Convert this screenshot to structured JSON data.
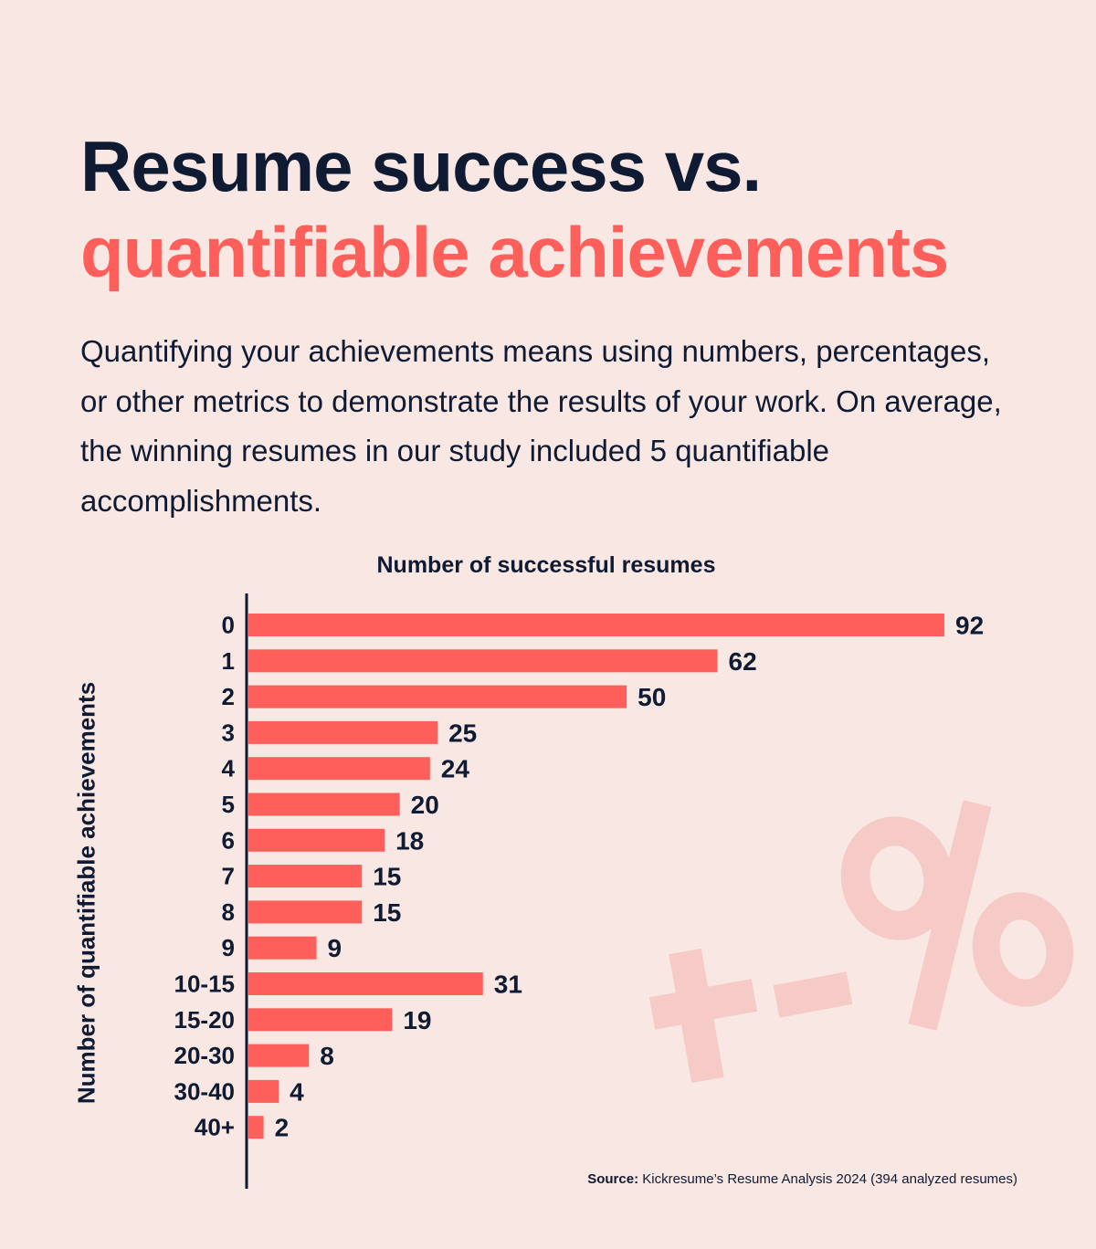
{
  "header": {
    "title_line1": "Resume success vs.",
    "title_line2": "quantifiable achievements",
    "description": "Quantifying your achievements means using numbers, percentages, or other metrics to demonstrate the results of your work. On average, the winning resumes in our study included 5 quantifiable accomplishments."
  },
  "decoration": {
    "symbols": "+-%",
    "icon": "plus-minus-percent-watermark",
    "color": "#f6c9c5"
  },
  "footer": {
    "source_label": "Source:",
    "source_text": "Kickresume’s Resume Analysis 2024 (394 analyzed resumes)"
  },
  "colors": {
    "bar": "#ff5f5a",
    "text": "#0f1a33",
    "background": "#f9e7e3",
    "accent": "#ff5f5a"
  },
  "chart_data": {
    "type": "bar",
    "orientation": "horizontal",
    "title": "Number of successful resumes",
    "xlabel": "Number of successful resumes",
    "ylabel": "Number of quantifiable achievements",
    "categories": [
      "0",
      "1",
      "2",
      "3",
      "4",
      "5",
      "6",
      "7",
      "8",
      "9",
      "10-15",
      "15-20",
      "20-30",
      "30-40",
      "40+"
    ],
    "values": [
      92,
      62,
      50,
      25,
      24,
      20,
      18,
      15,
      15,
      9,
      31,
      19,
      8,
      4,
      2
    ],
    "xlim": [
      0,
      92
    ],
    "data_labels": true,
    "grid": false,
    "legend": "none"
  }
}
